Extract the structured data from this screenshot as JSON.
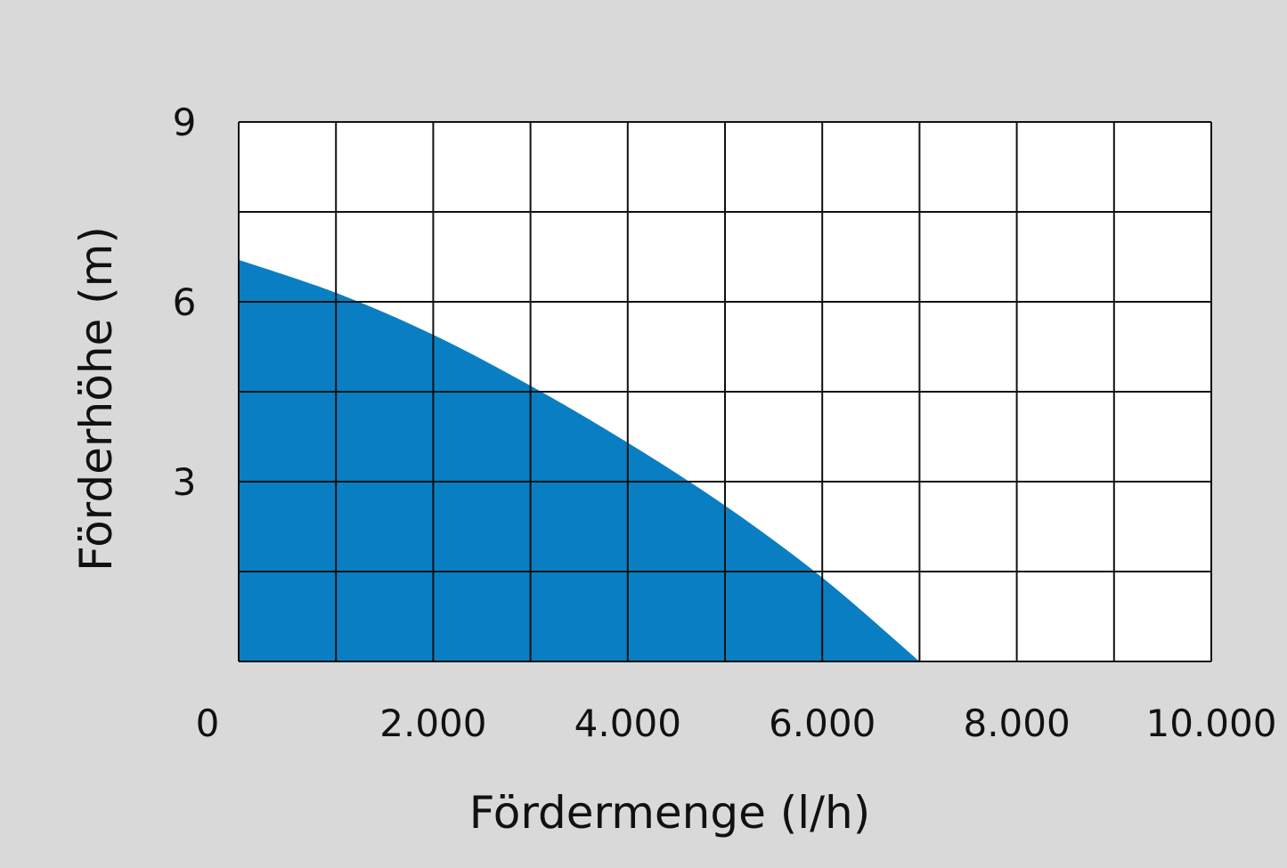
{
  "chart_data": {
    "type": "area",
    "title": "",
    "xlabel": "Fördermenge (l/h)",
    "ylabel": "Förderhöhe (m)",
    "xlim": [
      0,
      10000
    ],
    "ylim": [
      0,
      9
    ],
    "x_ticks": [
      0,
      2000,
      4000,
      6000,
      8000,
      10000
    ],
    "x_tick_labels": [
      "0",
      "2.000",
      "4.000",
      "6.000",
      "8.000",
      "10.000"
    ],
    "y_ticks": [
      3,
      6,
      9
    ],
    "y_tick_labels": [
      "3",
      "6",
      "9"
    ],
    "x_grid_step": 1000,
    "y_grid_step": 1.5,
    "grid": true,
    "legend": "none",
    "fill_color": "#0a7ec2",
    "background_color": "#d9d9d9",
    "series": [
      {
        "x": [
          0,
          1000,
          2000,
          3000,
          4000,
          5000,
          6000,
          7000
        ],
        "y": [
          6.7,
          6.15,
          5.45,
          4.6,
          3.65,
          2.6,
          1.4,
          0
        ]
      }
    ]
  }
}
